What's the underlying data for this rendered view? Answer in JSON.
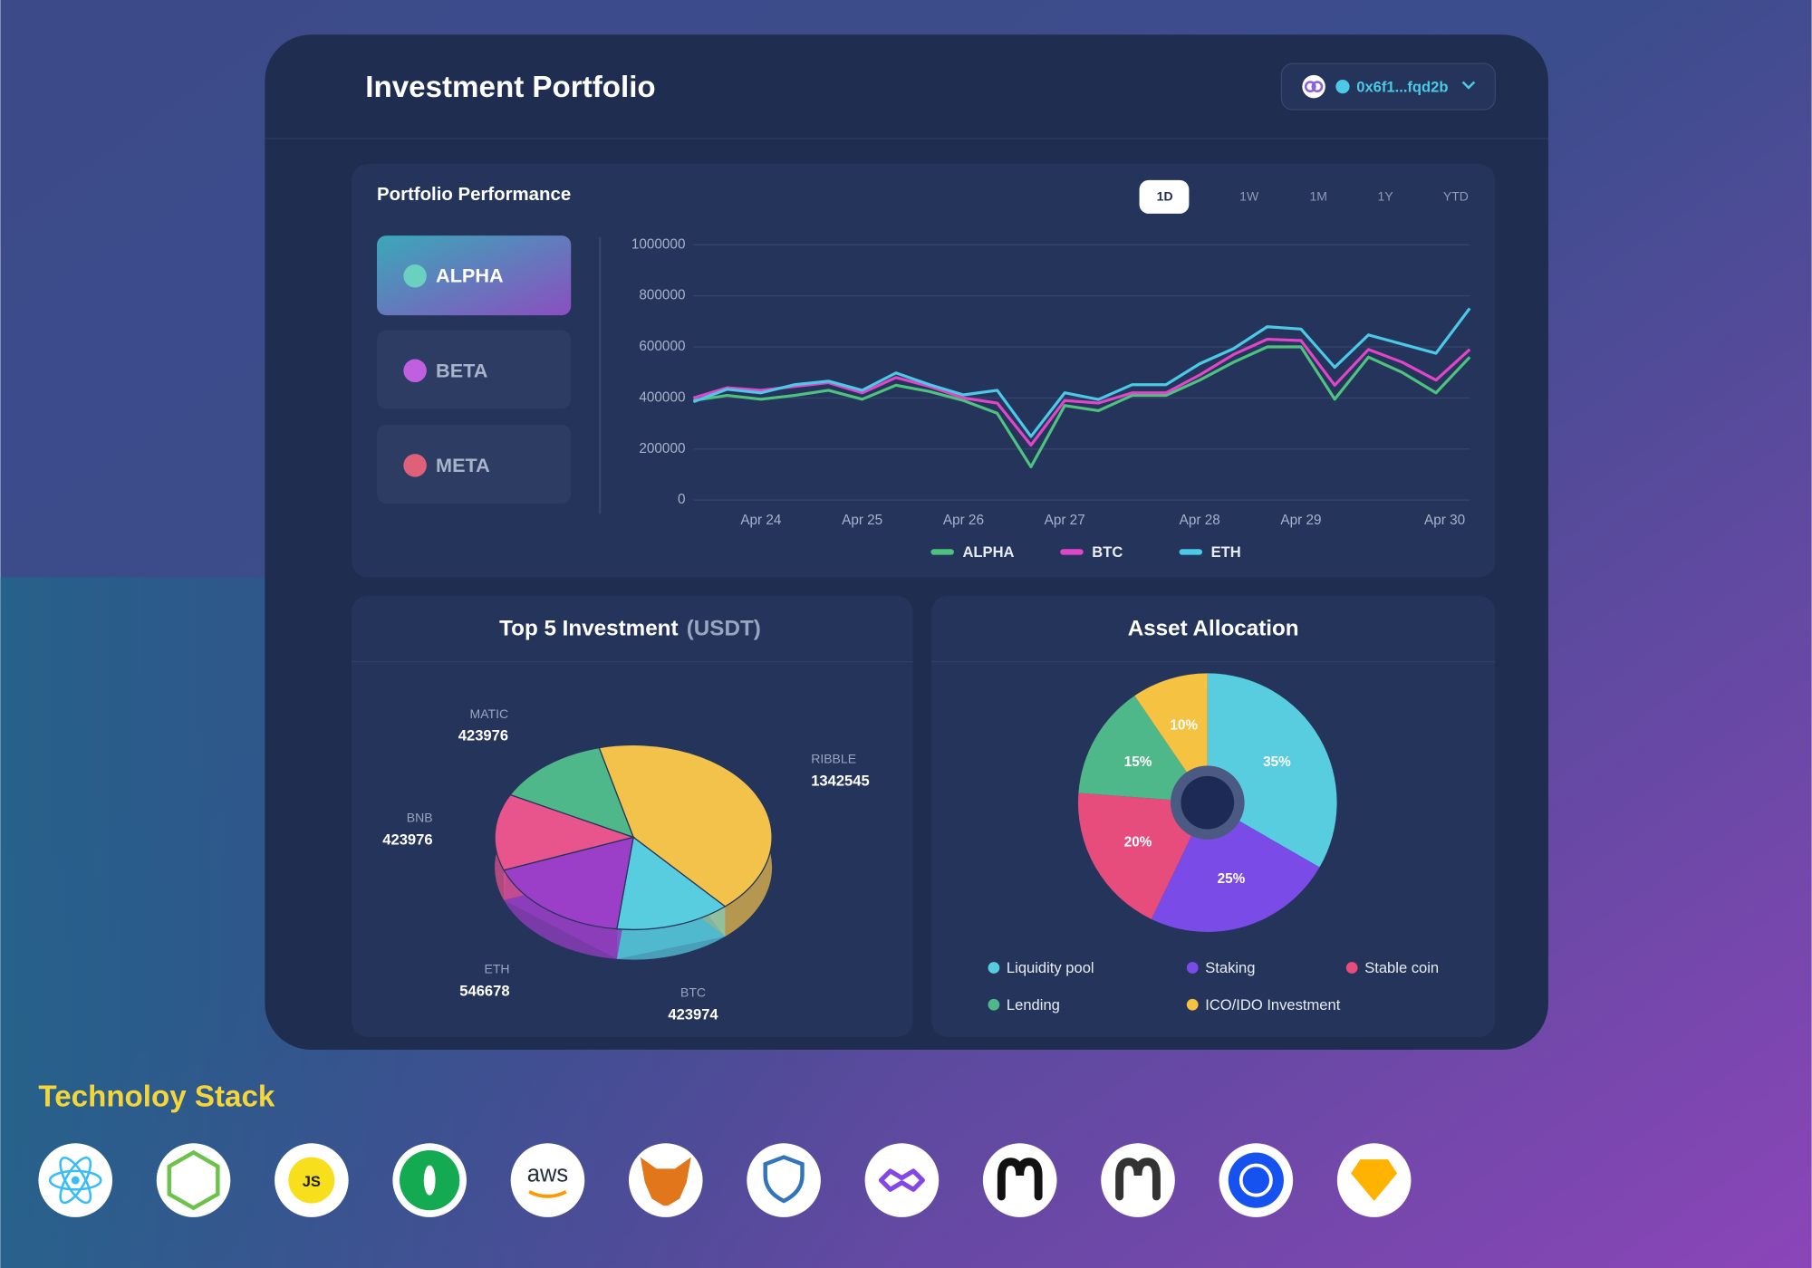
{
  "header": {
    "title": "Investment Portfolio",
    "wallet": "0x6f1...fqd2b"
  },
  "performance": {
    "title": "Portfolio Performance",
    "tabs": [
      "1D",
      "1W",
      "1M",
      "1Y",
      "YTD"
    ],
    "portfolios": [
      "ALPHA",
      "BETA",
      "META"
    ]
  },
  "chart_data": [
    {
      "type": "line",
      "categories": [
        null,
        null,
        "Apr 24",
        null,
        null,
        "Apr 25",
        null,
        null,
        "Apr 26",
        null,
        null,
        "Apr 27",
        null,
        null,
        null,
        "Apr 28",
        null,
        null,
        "Apr 29",
        null,
        null,
        null,
        null,
        "Apr 30"
      ],
      "series": [
        {
          "name": "ALPHA",
          "color": "#4fc27f",
          "values": [
            390000,
            410000,
            395000,
            410000,
            430000,
            395000,
            450000,
            425000,
            390000,
            340000,
            130000,
            370000,
            350000,
            410000,
            410000,
            470000,
            540000,
            600000,
            600000,
            395000,
            560000,
            500000,
            420000,
            560000
          ]
        },
        {
          "name": "BTC",
          "color": "#e046c8",
          "values": [
            400000,
            440000,
            430000,
            445000,
            460000,
            420000,
            480000,
            445000,
            400000,
            380000,
            215000,
            390000,
            380000,
            420000,
            420000,
            490000,
            570000,
            630000,
            625000,
            450000,
            590000,
            540000,
            470000,
            590000
          ]
        },
        {
          "name": "ETH",
          "color": "#4cc9e6",
          "values": [
            385000,
            434000,
            420000,
            452000,
            466000,
            430000,
            498000,
            452000,
            412000,
            430000,
            249000,
            420000,
            394000,
            452000,
            452000,
            534000,
            593000,
            679000,
            670000,
            520000,
            647000,
            611000,
            575000,
            751000
          ]
        }
      ],
      "ylim": [
        0,
        1000000
      ],
      "yticks": [
        0,
        200000,
        400000,
        600000,
        800000,
        1000000
      ],
      "grid": true,
      "legend": "bottom"
    },
    {
      "type": "pie",
      "title": "Top 5 Investment",
      "subtitle": "(USDT)",
      "categories": [
        "RIBBLE",
        "BTC",
        "ETH",
        "BNB",
        "MATIC"
      ],
      "values": [
        1342545,
        423974,
        546678,
        423976,
        423976
      ],
      "colors": [
        "#f2c24a",
        "#58cde0",
        "#9b3fc9",
        "#e8548c",
        "#4fb88a"
      ]
    },
    {
      "type": "pie",
      "title": "Asset Allocation",
      "hole": true,
      "categories": [
        "Liquidity pool",
        "Staking",
        "Stable coin",
        "Lending",
        "ICO/IDO Investment"
      ],
      "values": [
        35,
        25,
        20,
        15,
        10
      ],
      "value_labels": [
        "35%",
        "25%",
        "20%",
        "15%",
        "10%"
      ],
      "colors": [
        "#58cde0",
        "#7b4be8",
        "#e64d7c",
        "#4fb88a",
        "#f5c242"
      ],
      "legend": "bottom"
    }
  ],
  "tech_stack": {
    "title": "Technoloy Stack",
    "icon_texts": [
      "JS",
      "aws"
    ]
  }
}
